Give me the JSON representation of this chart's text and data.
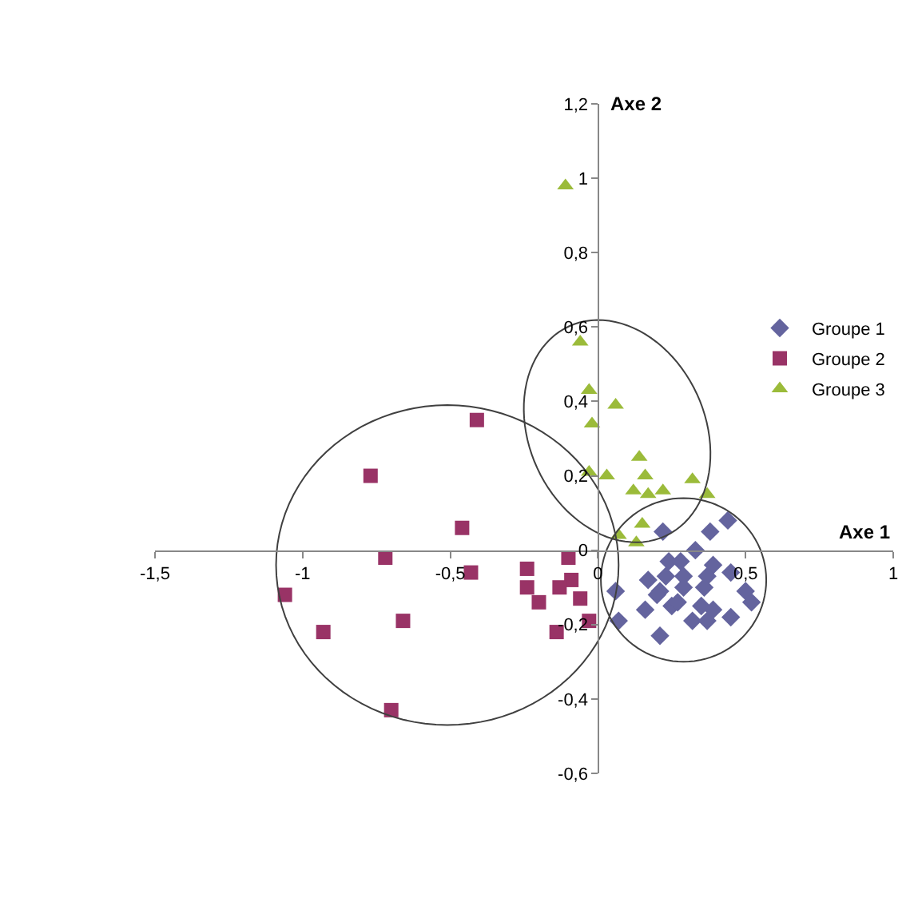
{
  "chart_data": {
    "type": "scatter",
    "xlabel": "Axe 1",
    "ylabel": "Axe 2",
    "xlim": [
      -1.5,
      1
    ],
    "ylim": [
      -0.6,
      1.2
    ],
    "xticks": [
      {
        "value": -1.5,
        "label": "-1,5"
      },
      -1,
      {
        "value": -0.5,
        "label": "-0,5"
      },
      0,
      {
        "value": 0.5,
        "label": "0,5"
      },
      1
    ],
    "yticks": [
      {
        "value": -0.6,
        "label": "-0,6"
      },
      {
        "value": -0.4,
        "label": "-0,4"
      },
      {
        "value": -0.2,
        "label": "-0,2"
      },
      0,
      {
        "value": 0.2,
        "label": "0,2"
      },
      {
        "value": 0.4,
        "label": "0,4"
      },
      {
        "value": 0.6,
        "label": "0,6"
      },
      {
        "value": 0.8,
        "label": "0,8"
      },
      1,
      {
        "value": 1.2,
        "label": "1,2"
      }
    ],
    "grid": false,
    "legend": "right",
    "series": [
      {
        "name": "Groupe 1",
        "marker": "diamond",
        "color": "#64649e",
        "x": [
          0.22,
          0.38,
          0.44,
          0.33,
          0.24,
          0.28,
          0.39,
          0.23,
          0.29,
          0.37,
          0.45,
          0.17,
          0.06,
          0.21,
          0.29,
          0.36,
          0.5,
          0.52,
          0.16,
          0.2,
          0.25,
          0.27,
          0.35,
          0.39,
          0.32,
          0.37,
          0.45,
          0.07,
          0.21
        ],
        "values": [
          0.05,
          0.05,
          0.08,
          0.0,
          -0.03,
          -0.03,
          -0.04,
          -0.07,
          -0.07,
          -0.07,
          -0.06,
          -0.08,
          -0.11,
          -0.11,
          -0.1,
          -0.1,
          -0.11,
          -0.14,
          -0.16,
          -0.12,
          -0.15,
          -0.14,
          -0.15,
          -0.16,
          -0.19,
          -0.19,
          -0.18,
          -0.19,
          -0.23
        ]
      },
      {
        "name": "Groupe 2",
        "marker": "square",
        "color": "#993366",
        "x": [
          -0.41,
          -0.77,
          -0.46,
          -0.72,
          -0.43,
          -1.06,
          -0.93,
          -0.66,
          -0.7,
          -0.24,
          -0.24,
          -0.2,
          -0.1,
          -0.09,
          -0.13,
          -0.06,
          -0.03,
          -0.14
        ],
        "values": [
          0.35,
          0.2,
          0.06,
          -0.02,
          -0.06,
          -0.12,
          -0.22,
          -0.19,
          -0.43,
          -0.05,
          -0.1,
          -0.14,
          -0.02,
          -0.08,
          -0.1,
          -0.13,
          -0.19,
          -0.22
        ]
      },
      {
        "name": "Groupe 3",
        "marker": "triangle",
        "color": "#9bbb3a",
        "x": [
          -0.11,
          -0.06,
          -0.03,
          -0.02,
          0.06,
          -0.03,
          0.03,
          0.14,
          0.16,
          0.12,
          0.17,
          0.22,
          0.32,
          0.37,
          0.15,
          0.07,
          0.13
        ],
        "values": [
          0.98,
          0.56,
          0.43,
          0.34,
          0.39,
          0.21,
          0.2,
          0.25,
          0.2,
          0.16,
          0.15,
          0.16,
          0.19,
          0.15,
          0.07,
          0.04,
          0.02
        ]
      }
    ]
  }
}
